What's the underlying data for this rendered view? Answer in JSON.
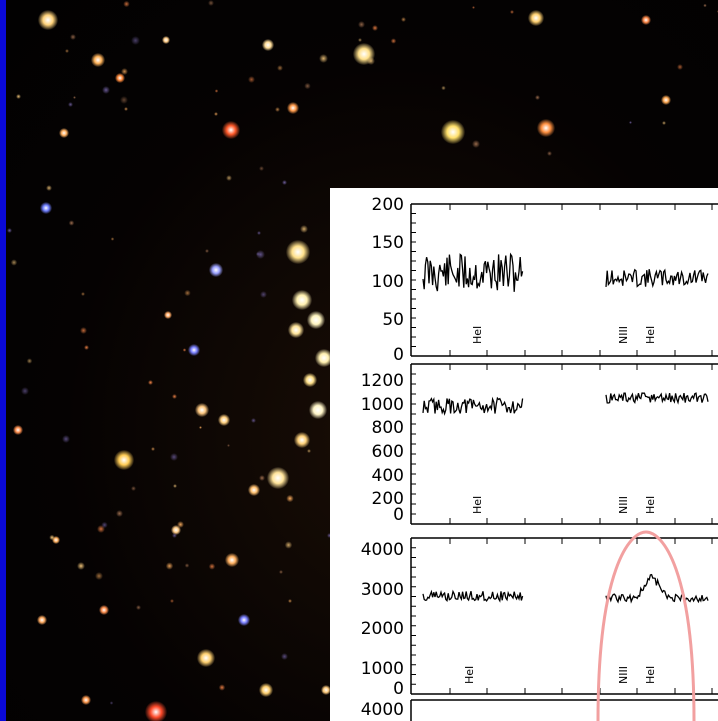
{
  "panels": [
    {
      "y_ticks": [
        "200",
        "150",
        "100",
        "50",
        "0"
      ],
      "line_labels": [
        "HeI",
        "NIII",
        "HeI"
      ]
    },
    {
      "y_ticks": [
        "1200",
        "1000",
        "800",
        "600",
        "400",
        "200",
        "0"
      ],
      "line_labels": [
        "HeI",
        "NIII",
        "HeI"
      ]
    },
    {
      "y_ticks": [
        "4000",
        "3000",
        "2000",
        "1000",
        "0"
      ],
      "line_labels": [
        "HeI",
        "NIII",
        "HeI"
      ]
    },
    {
      "y_ticks": [
        "4000"
      ],
      "line_labels": []
    }
  ],
  "colors": {
    "border": "#0a09d8",
    "highlight_ellipse": "#f2a0a0"
  }
}
